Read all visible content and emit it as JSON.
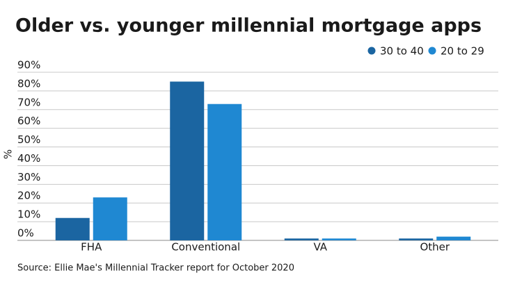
{
  "chart_data": {
    "type": "bar",
    "title": "Older vs. younger millennial mortgage apps",
    "y_label": "%",
    "source": "Source: Ellie Mae's Millennial Tracker report for October 2020",
    "categories": [
      "FHA",
      "Conventional",
      "VA",
      "Other"
    ],
    "series": [
      {
        "name": "30 to 40",
        "color": "#1b65a1",
        "values": [
          12,
          85,
          1,
          1
        ]
      },
      {
        "name": "20 to 29",
        "color": "#1f88d2",
        "values": [
          23,
          73,
          1,
          2
        ]
      }
    ],
    "ylim": [
      0,
      90
    ],
    "yticks": [
      {
        "value": 0,
        "label": "0%"
      },
      {
        "value": 10,
        "label": "10%"
      },
      {
        "value": 20,
        "label": "20%"
      },
      {
        "value": 30,
        "label": "30%"
      },
      {
        "value": 40,
        "label": "40%"
      },
      {
        "value": 50,
        "label": "50%"
      },
      {
        "value": 60,
        "label": "60%"
      },
      {
        "value": 70,
        "label": "70%"
      },
      {
        "value": 80,
        "label": "80%"
      },
      {
        "value": 90,
        "label": "90%"
      }
    ],
    "grid": true,
    "legend": "top-right"
  }
}
